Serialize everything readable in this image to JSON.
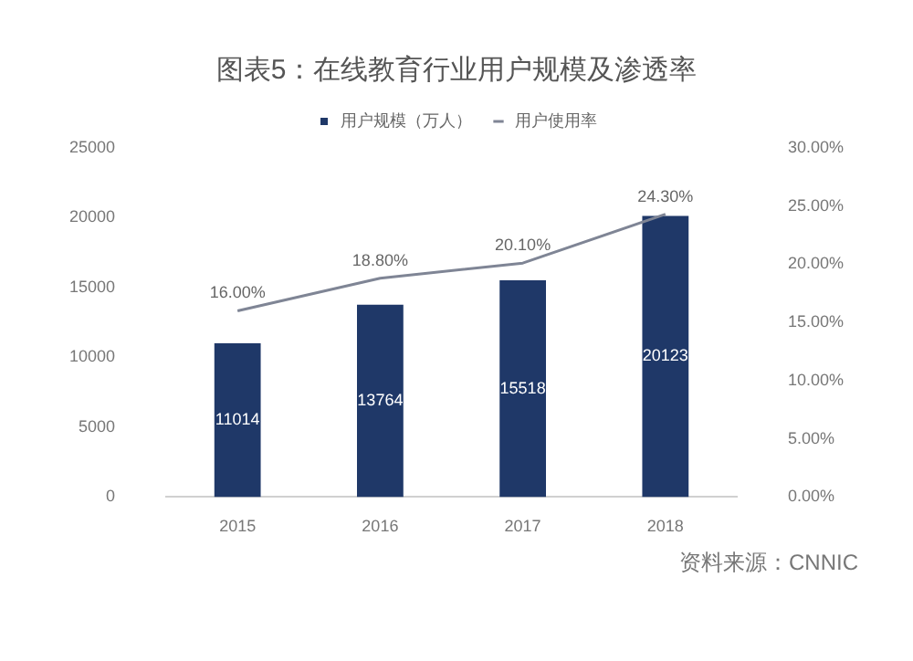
{
  "chart_data": {
    "type": "bar",
    "title": "图表5：在线教育行业用户规模及渗透率",
    "categories": [
      "2015",
      "2016",
      "2017",
      "2018"
    ],
    "series": [
      {
        "name": "用户规模（万人）",
        "color": "#1f3868",
        "values": [
          11014,
          13764,
          15518,
          20123
        ],
        "value_labels": [
          "11014",
          "13764",
          "15518",
          "20123"
        ]
      },
      {
        "name": "用户使用率",
        "type": "line",
        "axis": "y2",
        "color": "#7f8595",
        "values": [
          16.0,
          18.8,
          20.1,
          24.3
        ],
        "value_labels": [
          "16.00%",
          "18.80%",
          "20.10%",
          "24.30%"
        ],
        "marker": "none"
      }
    ],
    "ylim": [
      0,
      25000
    ],
    "yticks": [
      0,
      5000,
      10000,
      15000,
      20000,
      25000
    ],
    "y2lim": [
      0,
      30
    ],
    "y2ticks": [
      {
        "value": 0,
        "label": "0.00%"
      },
      {
        "value": 5,
        "label": "5.00%"
      },
      {
        "value": 10,
        "label": "10.00%"
      },
      {
        "value": 15,
        "label": "15.00%"
      },
      {
        "value": 20,
        "label": "20.00%"
      },
      {
        "value": 25,
        "label": "25.00%"
      },
      {
        "value": 30,
        "label": "30.00%"
      }
    ],
    "legend": "top",
    "grid": false,
    "annotations": [
      "资料来源：CNNIC"
    ]
  }
}
